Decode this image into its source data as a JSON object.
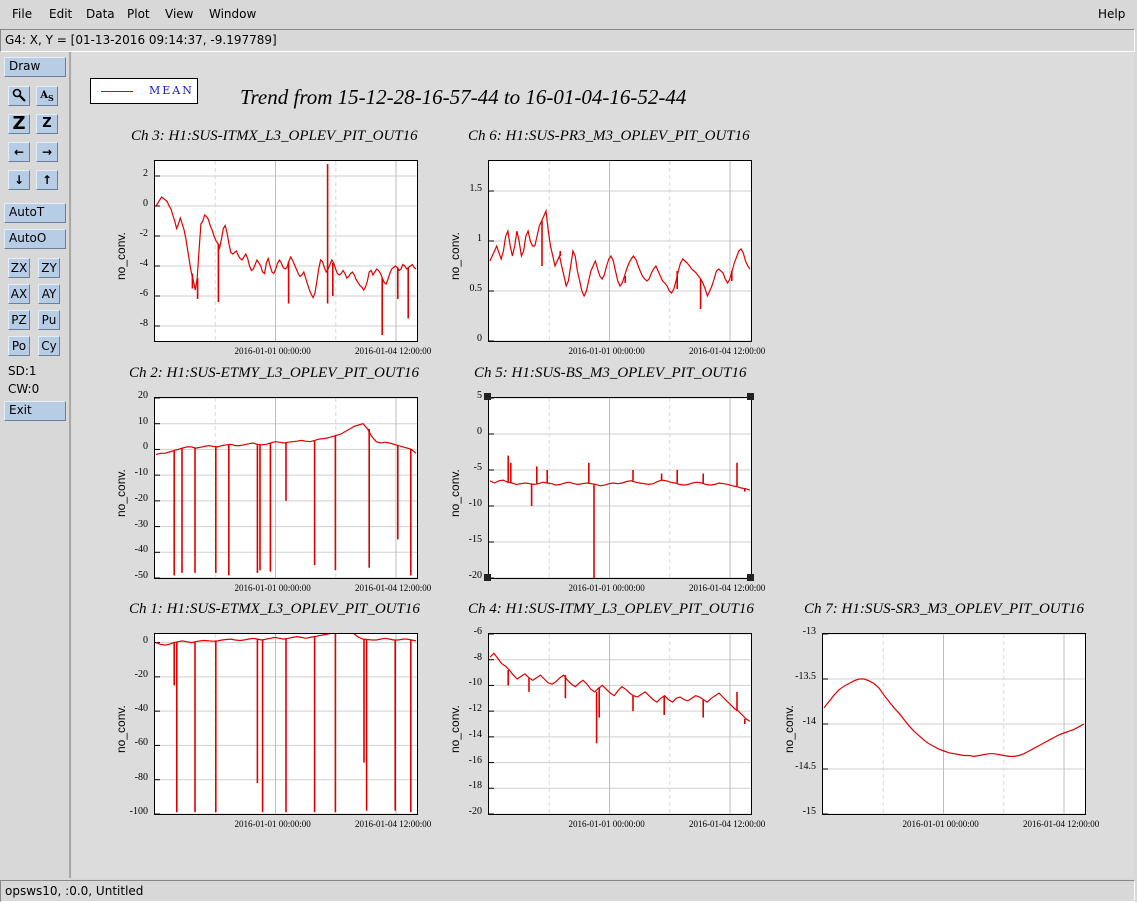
{
  "menubar": {
    "items": [
      "File",
      "Edit",
      "Data",
      "Plot",
      "View",
      "Window"
    ],
    "help": "Help"
  },
  "coord_readout": "G4: X, Y = [01-13-2016 09:14:37, -9.197789]",
  "toolbar": {
    "draw": "Draw",
    "autot": "AutoT",
    "autoo": "AutoO",
    "row1": [
      "ZX",
      "ZY"
    ],
    "row2": [
      "AX",
      "AY"
    ],
    "row3": [
      "PZ",
      "Pu"
    ],
    "row4": [
      "Po",
      "Cy"
    ],
    "sd": "SD:1",
    "cw": "CW:0",
    "exit": "Exit",
    "icons": [
      "zoom-tool-icon",
      "annotate-text-icon",
      "zoom-in-large-icon",
      "zoom-out-small-icon",
      "arrow-left-icon",
      "arrow-right-icon",
      "arrow-down-icon",
      "arrow-up-icon"
    ]
  },
  "status_bar": "opsws10, :0.0, Untitled",
  "legend": {
    "label": "MEAN",
    "color": "#e00000"
  },
  "main_title": "Trend from 15-12-28-16-57-44 to 16-01-04-16-52-44",
  "chart_data": [
    {
      "id": "ch3",
      "type": "line",
      "title": "Ch 3: H1:SUS-ITMX_L3_OPLEV_PIT_OUT16",
      "ylabel": "no_conv.",
      "ylim": [
        -9,
        3
      ],
      "yticks": [
        2,
        0,
        -2,
        -4,
        -6,
        -8
      ],
      "xticks": [
        "2016-01-01 00:00:00",
        "2016-01-04 12:00:00"
      ],
      "series": [
        {
          "color": "#e00000",
          "values": [
            0,
            0.2,
            0.4,
            0.6,
            0.5,
            0.4,
            0.3,
            0,
            -0.2,
            -0.6,
            -1,
            -1.5,
            -1.2,
            -0.8,
            -1.2,
            -1.6,
            -2.2,
            -3,
            -3.8,
            -4.5,
            -5,
            -5.6,
            -4.8,
            -3,
            -1.2,
            -1,
            -0.6,
            -0.7,
            -0.9,
            -1.3,
            -1.6,
            -2,
            -2.3,
            -2.5,
            -2.8,
            -2.2,
            -1.5,
            -1.3,
            -1.8,
            -2.5,
            -3.1,
            -3.2,
            -3.1,
            -3,
            -3.3,
            -3.5,
            -3.6,
            -3.4,
            -3.2,
            -3.5,
            -4,
            -4.3,
            -4.2,
            -3.9,
            -3.6,
            -3.8,
            -4,
            -4.4,
            -4.5,
            -3.8,
            -3.5,
            -4,
            -4.4,
            -4.5,
            -4.2,
            -3.8,
            -3.6,
            -3.8,
            -4.1,
            -4.2,
            -4.1,
            -3.7,
            -3.4,
            -3.6,
            -3.9,
            -4.2,
            -4.5,
            -4.7,
            -4.6,
            -4.4,
            -4.8,
            -5.2,
            -5.6,
            -5.9,
            -6.1,
            -5.8,
            -5,
            -4.2,
            -3.6,
            -3.7,
            -4.1,
            -4.4,
            -4.2,
            -3.9,
            -3.6,
            -3.8,
            -4.2,
            -4.5,
            -4.6,
            -4.5,
            -4.3,
            -4.5,
            -4.8,
            -4.7,
            -4.5,
            -4.4,
            -4.6,
            -4.9,
            -5.1,
            -5.3,
            -5.4,
            -5.6,
            -5.4,
            -5,
            -4.4,
            -4.3,
            -4.6,
            -4.4,
            -4.2,
            -4.3,
            -4.5,
            -4.8,
            -5.1,
            -5.2,
            -4.9,
            -4.5,
            -4.2,
            -4.1,
            -4,
            -4.1,
            -4.3,
            -4.2,
            -3.9,
            -4,
            -4.2,
            -4.1,
            -4,
            -3.9,
            -4.1,
            -4.2
          ]
        }
      ],
      "spikes": [
        [
          0.14,
          -5.5
        ],
        [
          0.16,
          -6.2
        ],
        [
          0.66,
          2.8
        ],
        [
          0.66,
          -6.5
        ],
        [
          0.68,
          -6
        ],
        [
          0.87,
          -8.6
        ],
        [
          0.93,
          -6.2
        ],
        [
          0.97,
          -7.5
        ],
        [
          0.24,
          -6.4
        ],
        [
          0.51,
          -6.5
        ],
        [
          0.62,
          -5
        ]
      ]
    },
    {
      "id": "ch6",
      "type": "line",
      "title": "Ch 6: H1:SUS-PR3_M3_OPLEV_PIT_OUT16",
      "ylabel": "no_conv.",
      "ylim": [
        0,
        1.8
      ],
      "yticks": [
        1.5,
        1,
        0.5,
        0
      ],
      "xticks": [
        "2016-01-01 00:00:00",
        "2016-01-04 12:00:00"
      ],
      "series": [
        {
          "color": "#e00000",
          "values": [
            0.8,
            0.85,
            0.9,
            0.95,
            0.88,
            0.82,
            0.9,
            1.05,
            1.1,
            0.95,
            0.85,
            0.95,
            1.1,
            1.0,
            0.85,
            0.9,
            1.05,
            1.1,
            1.0,
            0.95,
            0.95,
            1.05,
            1.15,
            1.2,
            1.25,
            1.3,
            1.1,
            0.95,
            0.85,
            0.75,
            0.8,
            0.85,
            0.75,
            0.65,
            0.55,
            0.6,
            0.75,
            0.9,
            0.85,
            0.7,
            0.6,
            0.5,
            0.45,
            0.5,
            0.6,
            0.7,
            0.75,
            0.8,
            0.72,
            0.65,
            0.62,
            0.66,
            0.75,
            0.82,
            0.85,
            0.8,
            0.7,
            0.6,
            0.55,
            0.58,
            0.65,
            0.72,
            0.78,
            0.82,
            0.85,
            0.82,
            0.76,
            0.7,
            0.65,
            0.62,
            0.6,
            0.62,
            0.68,
            0.72,
            0.75,
            0.7,
            0.65,
            0.6,
            0.58,
            0.55,
            0.5,
            0.48,
            0.52,
            0.6,
            0.7,
            0.78,
            0.82,
            0.8,
            0.78,
            0.75,
            0.72,
            0.7,
            0.68,
            0.65,
            0.62,
            0.58,
            0.52,
            0.45,
            0.5,
            0.55,
            0.62,
            0.7,
            0.72,
            0.7,
            0.68,
            0.62,
            0.58,
            0.62,
            0.7,
            0.78,
            0.84,
            0.9,
            0.92,
            0.88,
            0.8,
            0.75,
            0.72
          ]
        }
      ],
      "spikes": [
        [
          0.2,
          0.75
        ],
        [
          0.27,
          0.9
        ],
        [
          0.52,
          0.58
        ],
        [
          0.72,
          0.52
        ],
        [
          0.81,
          0.32
        ],
        [
          0.93,
          0.6
        ]
      ]
    },
    {
      "id": "ch2",
      "type": "line",
      "title": "Ch 2: H1:SUS-ETMY_L3_OPLEV_PIT_OUT16",
      "ylabel": "no_conv.",
      "ylim": [
        -50,
        20
      ],
      "yticks": [
        20,
        10,
        0,
        -10,
        -20,
        -30,
        -40,
        -50
      ],
      "xticks": [
        "2016-01-01 00:00:00",
        "2016-01-04 12:00:00"
      ],
      "series": [
        {
          "color": "#e00000",
          "values": [
            -2,
            -1.5,
            -1.5,
            -1,
            -0.5,
            0,
            0.5,
            1,
            1,
            0.5,
            0.8,
            1.2,
            1.5,
            1.2,
            1,
            1.5,
            1.8,
            2,
            1.5,
            1.5,
            1.8,
            2.2,
            2.5,
            2,
            1.8,
            2,
            2.5,
            3,
            2.8,
            2.5,
            2.8,
            3,
            3.2,
            3.5,
            3.2,
            3,
            3.5,
            4,
            4.2,
            4.5,
            5,
            5.5,
            6,
            7,
            8,
            9,
            9.5,
            10,
            8,
            5,
            3,
            2.5,
            2.8,
            2.5,
            2,
            1.5,
            1,
            0.5,
            0,
            -1.5
          ]
        }
      ],
      "spikes": [
        [
          0.07,
          -49
        ],
        [
          0.1,
          -48
        ],
        [
          0.15,
          -48
        ],
        [
          0.23,
          -48
        ],
        [
          0.28,
          -49
        ],
        [
          0.39,
          -48
        ],
        [
          0.4,
          -47
        ],
        [
          0.44,
          -47.5
        ],
        [
          0.5,
          -20
        ],
        [
          0.61,
          -45
        ],
        [
          0.69,
          -47
        ],
        [
          0.82,
          -46
        ],
        [
          0.93,
          -35
        ],
        [
          0.98,
          -49
        ]
      ]
    },
    {
      "id": "ch5",
      "type": "line",
      "title": "Ch 5: H1:SUS-BS_M3_OPLEV_PIT_OUT16",
      "ylabel": "no_conv.",
      "ylim": [
        -20,
        5
      ],
      "yticks": [
        5,
        0,
        -5,
        -10,
        -15,
        -20
      ],
      "xticks": [
        "2016-01-01 00:00:00",
        "2016-01-04 12:00:00"
      ],
      "series": [
        {
          "color": "#e00000",
          "values": [
            -6.5,
            -6.8,
            -6.5,
            -6.4,
            -6.7,
            -6.8,
            -7,
            -6.9,
            -6.8,
            -6.9,
            -7,
            -6.9,
            -6.7,
            -6.8,
            -6.9,
            -7.1,
            -7,
            -6.8,
            -6.7,
            -6.9,
            -7,
            -6.9,
            -6.8,
            -6.9,
            -7,
            -7.2,
            -7.1,
            -6.9,
            -6.8,
            -6.9,
            -6.8,
            -6.6,
            -6.5,
            -6.7,
            -6.8,
            -6.9,
            -7,
            -6.9,
            -6.6,
            -6.4,
            -6.5,
            -6.7,
            -6.8,
            -7,
            -7.1,
            -7,
            -6.8,
            -6.7,
            -6.8,
            -7,
            -7.1,
            -7,
            -6.8,
            -6.9,
            -7,
            -7.2,
            -7.3,
            -7.5,
            -7.6,
            -7.8
          ]
        }
      ],
      "spikes": [
        [
          0.07,
          -3
        ],
        [
          0.08,
          -4
        ],
        [
          0.16,
          -10
        ],
        [
          0.18,
          -4.5
        ],
        [
          0.22,
          -5
        ],
        [
          0.38,
          -4
        ],
        [
          0.4,
          -20
        ],
        [
          0.55,
          -5
        ],
        [
          0.66,
          -5.5
        ],
        [
          0.72,
          -5
        ],
        [
          0.82,
          -5.5
        ],
        [
          0.95,
          -4
        ],
        [
          0.98,
          -8
        ]
      ]
    },
    {
      "id": "ch1",
      "type": "line",
      "title": "Ch 1: H1:SUS-ETMX_L3_OPLEV_PIT_OUT16",
      "ylabel": "no_conv.",
      "ylim": [
        -100,
        5
      ],
      "yticks": [
        0,
        -20,
        -40,
        -60,
        -80,
        -100
      ],
      "xticks": [
        "2016-01-01 00:00:00",
        "2016-01-04 12:00:00"
      ],
      "series": [
        {
          "color": "#e00000",
          "values": [
            0,
            -1,
            -1.5,
            -1,
            0,
            0.5,
            1,
            0.5,
            0,
            0.5,
            1,
            1.2,
            1,
            0.8,
            1,
            1.5,
            1.8,
            2,
            1.5,
            1.2,
            1.5,
            2,
            2.5,
            2,
            1.5,
            2,
            2.5,
            3,
            2.5,
            2,
            2.5,
            3,
            3.5,
            3,
            2.5,
            3,
            3.5,
            4,
            4.5,
            5,
            5.5,
            6,
            6.5,
            7,
            6.5,
            5,
            3,
            2,
            1.8,
            1.5,
            1.5,
            2,
            2.5,
            2,
            1.5,
            1.5,
            2,
            2,
            1.5,
            1
          ]
        }
      ],
      "spikes": [
        [
          0.07,
          -25
        ],
        [
          0.08,
          -99
        ],
        [
          0.15,
          -99
        ],
        [
          0.23,
          -99
        ],
        [
          0.39,
          -82
        ],
        [
          0.41,
          -99
        ],
        [
          0.5,
          -99
        ],
        [
          0.61,
          -99
        ],
        [
          0.69,
          -99
        ],
        [
          0.8,
          -70
        ],
        [
          0.81,
          -98
        ],
        [
          0.92,
          -98
        ],
        [
          0.98,
          -99
        ]
      ]
    },
    {
      "id": "ch4",
      "type": "line",
      "title": "Ch 4: H1:SUS-ITMY_L3_OPLEV_PIT_OUT16",
      "ylabel": "no_conv.",
      "ylim": [
        -20,
        -6
      ],
      "yticks": [
        -6,
        -8,
        -10,
        -12,
        -14,
        -16,
        -18,
        -20
      ],
      "xticks": [
        "2016-01-01 00:00:00",
        "2016-01-04 12:00:00"
      ],
      "series": [
        {
          "color": "#e00000",
          "values": [
            -7.8,
            -7.5,
            -7.9,
            -8.3,
            -8.5,
            -8.8,
            -9.2,
            -9.5,
            -9.3,
            -9.1,
            -9.4,
            -9.6,
            -9.4,
            -9.2,
            -9.5,
            -9.8,
            -9.9,
            -9.7,
            -9.4,
            -9.2,
            -9.6,
            -9.9,
            -10.1,
            -9.8,
            -9.6,
            -9.9,
            -10.3,
            -10.5,
            -10.2,
            -10.0,
            -10.3,
            -10.6,
            -10.8,
            -10.4,
            -10.1,
            -10.3,
            -10.6,
            -10.8,
            -10.9,
            -10.7,
            -10.5,
            -10.8,
            -11.1,
            -11.3,
            -11.0,
            -10.8,
            -11.1,
            -11.3,
            -11.0,
            -10.9,
            -11.1,
            -11.2,
            -11.0,
            -10.8,
            -10.9,
            -11.1,
            -11.3,
            -11.0,
            -10.8,
            -10.6,
            -10.9,
            -11.2,
            -11.5,
            -11.8,
            -12.0,
            -12.3,
            -12.6,
            -12.8
          ]
        }
      ],
      "spikes": [
        [
          0.07,
          -10
        ],
        [
          0.15,
          -10.5
        ],
        [
          0.29,
          -11
        ],
        [
          0.41,
          -14.5
        ],
        [
          0.42,
          -12.5
        ],
        [
          0.55,
          -12
        ],
        [
          0.67,
          -12.3
        ],
        [
          0.82,
          -12.5
        ],
        [
          0.95,
          -10.5
        ],
        [
          0.98,
          -13
        ]
      ]
    },
    {
      "id": "ch7",
      "type": "line",
      "title": "Ch 7: H1:SUS-SR3_M3_OPLEV_PIT_OUT16",
      "ylabel": "no_conv.",
      "ylim": [
        -15,
        -13
      ],
      "yticks": [
        -13,
        -13.5,
        -14,
        -14.5,
        -15
      ],
      "xticks": [
        "2016-01-01 00:00:00",
        "2016-01-04 12:00:00"
      ],
      "series": [
        {
          "color": "#e00000",
          "values": [
            -13.82,
            -13.75,
            -13.68,
            -13.62,
            -13.58,
            -13.55,
            -13.52,
            -13.5,
            -13.5,
            -13.52,
            -13.55,
            -13.6,
            -13.68,
            -13.75,
            -13.82,
            -13.88,
            -13.95,
            -14.02,
            -14.08,
            -14.13,
            -14.18,
            -14.22,
            -14.25,
            -14.28,
            -14.3,
            -14.32,
            -14.33,
            -14.34,
            -14.35,
            -14.35,
            -14.36,
            -14.35,
            -14.34,
            -14.33,
            -14.33,
            -14.34,
            -14.35,
            -14.36,
            -14.36,
            -14.35,
            -14.33,
            -14.3,
            -14.27,
            -14.24,
            -14.21,
            -14.18,
            -14.15,
            -14.12,
            -14.1,
            -14.08,
            -14.06,
            -14.03,
            -14.0
          ]
        }
      ],
      "spikes": []
    }
  ]
}
